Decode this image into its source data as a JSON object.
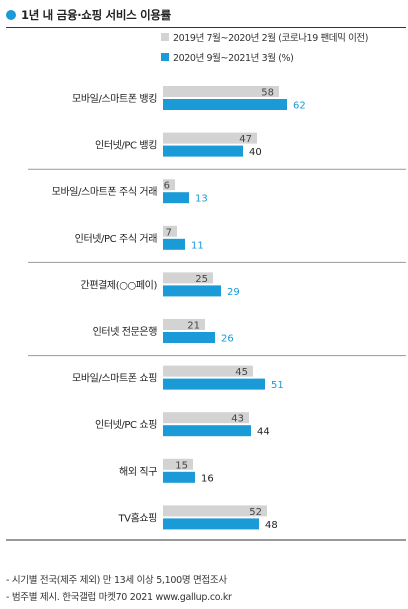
{
  "title": "1년 내 금융·쇼핑 서비스 이용률",
  "legend": [
    {
      "label": "2019년 7월~2020년 2월 (코로나19 팬데믹 이전)",
      "color": "#d3d3d3"
    },
    {
      "label": "2020년 9월~2021년 3월 (%)",
      "color": "#1a9ad6"
    }
  ],
  "chart_data": {
    "type": "bar",
    "orientation": "horizontal",
    "categories": [
      "모바일/스마트폰 뱅킹",
      "인터넷/PC 뱅킹",
      "모바일/스마트폰 주식 거래",
      "인터넷/PC 주식 거래",
      "간편결제(○○페이)",
      "인터넷 전문은행",
      "모바일/스마트폰 쇼핑",
      "인터넷/PC 쇼핑",
      "해외 직구",
      "TV홈쇼핑"
    ],
    "series": [
      {
        "name": "2019년 7월~2020년 2월 (코로나19 팬데믹 이전)",
        "color": "#d3d3d3",
        "values": [
          58,
          47,
          6,
          7,
          25,
          21,
          45,
          43,
          15,
          52
        ]
      },
      {
        "name": "2020년 9월~2021년 3월 (%)",
        "color": "#1a9ad6",
        "values": [
          62,
          40,
          13,
          11,
          29,
          26,
          51,
          44,
          16,
          48
        ]
      }
    ],
    "groups_after_index": [
      1,
      3,
      5
    ],
    "grid": false
  },
  "footnotes": [
    "- 시기별 전국(제주 제외) 만 13세 이상 5,100명 면접조사",
    "- 범주별 제시. 한국갤럽 마켓70 2021 www.gallup.co.kr"
  ]
}
